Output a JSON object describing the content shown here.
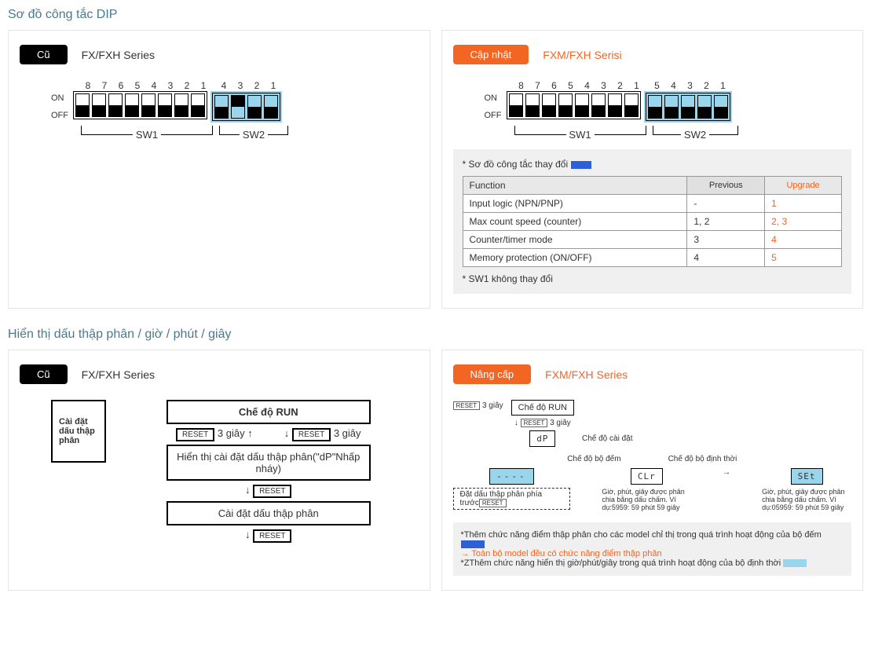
{
  "section1": {
    "title": "Sơ đồ công tắc DIP",
    "old": {
      "badge": "Cũ",
      "series": "FX/FXH Series",
      "sw1_nums": [
        "8",
        "7",
        "6",
        "5",
        "4",
        "3",
        "2",
        "1"
      ],
      "sw2_nums": [
        "4",
        "3",
        "2",
        "1"
      ],
      "sw1_states": [
        1,
        1,
        1,
        1,
        1,
        1,
        1,
        1
      ],
      "sw2_states": [
        1,
        0,
        1,
        1
      ],
      "on_label": "ON",
      "off_label": "OFF",
      "sw1_label": "SW1",
      "sw2_label": "SW2"
    },
    "new": {
      "badge": "Cập nhật",
      "series": "FXM/FXH Serisi",
      "sw1_nums": [
        "8",
        "7",
        "6",
        "5",
        "4",
        "3",
        "2",
        "1"
      ],
      "sw2_nums": [
        "5",
        "4",
        "3",
        "2",
        "1"
      ],
      "sw1_states": [
        1,
        1,
        1,
        1,
        1,
        1,
        1,
        1
      ],
      "sw2_states": [
        1,
        1,
        1,
        1,
        1
      ],
      "on_label": "ON",
      "off_label": "OFF",
      "sw1_label": "SW1",
      "sw2_label": "SW2",
      "note_title": "* Sơ đồ công tắc thay đổi",
      "table": {
        "headers": [
          "Function",
          "Previous",
          "Upgrade"
        ],
        "rows": [
          [
            "Input logic (NPN/PNP)",
            "-",
            "1"
          ],
          [
            "Max count speed (counter)",
            "1, 2",
            "2, 3"
          ],
          [
            "Counter/timer mode",
            "3",
            "4"
          ],
          [
            "Memory protection (ON/OFF)",
            "4",
            "5"
          ]
        ]
      },
      "note_footer": "* SW1 không thay đổi"
    }
  },
  "section2": {
    "title": "Hiển thị dấu thập phân / giờ / phút / giây",
    "old": {
      "badge": "Cũ",
      "series": "FX/FXH Series",
      "run_mode": "Chế độ RUN",
      "reset": "RESET",
      "reset_time": "3 giây",
      "side": "Cài đặt dấu thập phân",
      "mid": "Hiển thị cài đặt dấu thập phân(\"dP\"Nhấp nháy)",
      "bottom": "Cài đặt dấu thập phân"
    },
    "new": {
      "badge": "Nâng cấp",
      "series": "FXM/FXH Series",
      "run_mode": "Chế độ RUN",
      "reset": "RESET",
      "reset_time": "3 giây",
      "dp": "dP",
      "setting_mode": "Chế độ cài đặt",
      "counter_mode": "Chế độ bộ đếm",
      "timer_mode": "Chế độ bộ định thời",
      "dash": "----",
      "dp_front": "Đặt dấu thập phân phía trước",
      "clr": "CLr",
      "clr_desc": "Giờ, phút, giây được phân chia bằng dấu chấm. Ví dụ:5959: 59 phút 59 giây",
      "set": "SEt",
      "set_desc": "Giờ, phút, giây được phân chia bằng dấu chấm. Ví dụ:05959: 59 phút 59 giây",
      "footer1": "*Thêm chức năng điểm thập phân cho các model chỉ thị trong quá trình hoạt động của bộ đếm",
      "footer1b": "→ Toàn bộ model đều có chức năng điểm thập phân",
      "footer2": "*ZThêm chức năng hiển thị giờ/phút/giây trong quá trình hoạt động của bộ định thời"
    }
  }
}
